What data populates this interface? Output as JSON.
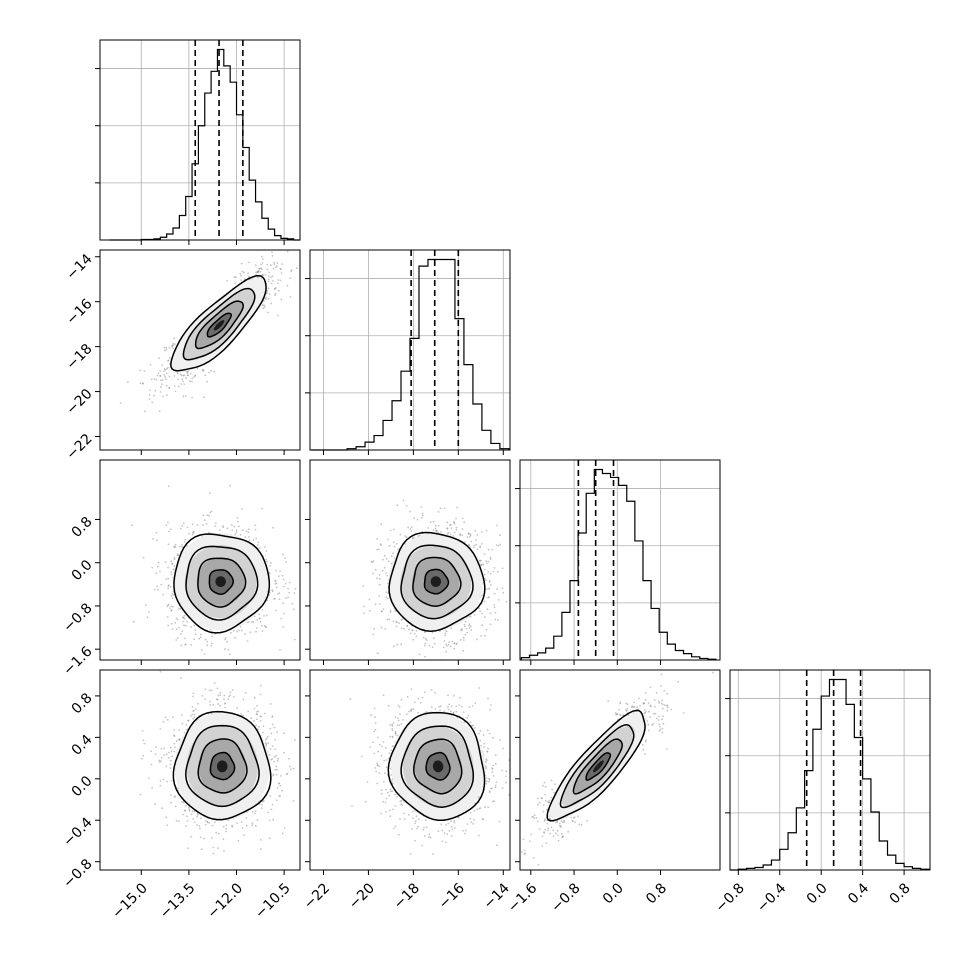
{
  "chart_data": {
    "type": "corner",
    "description_free": true,
    "params": [
      {
        "range": [
          -16.3,
          -10.0
        ],
        "ticks": [
          -15.0,
          -13.5,
          -12.0,
          -10.5
        ],
        "tick_labels": [
          "−15.0",
          "−13.5",
          "−12.0",
          "−10.5"
        ],
        "quantiles": [
          -13.3,
          -12.55,
          -11.8
        ],
        "hist_centers": [
          -15.9,
          -15.7,
          -15.5,
          -15.3,
          -15.1,
          -14.9,
          -14.7,
          -14.5,
          -14.3,
          -14.1,
          -13.9,
          -13.7,
          -13.5,
          -13.3,
          -13.1,
          -12.9,
          -12.7,
          -12.5,
          -12.3,
          -12.1,
          -11.9,
          -11.7,
          -11.5,
          -11.3,
          -11.1,
          -10.9,
          -10.7,
          -10.5,
          -10.3,
          -10.1
        ],
        "hist_values": [
          0,
          0,
          0,
          0,
          0,
          1,
          1,
          2,
          5,
          11,
          22,
          45,
          80,
          140,
          210,
          270,
          310,
          350,
          320,
          290,
          230,
          170,
          110,
          70,
          40,
          20,
          8,
          3,
          2,
          0
        ]
      },
      {
        "range": [
          -22.6,
          -13.7
        ],
        "ticks": [
          -22,
          -20,
          -18,
          -16,
          -14
        ],
        "tick_labels": [
          "−22",
          "−20",
          "−18",
          "−16",
          "−14"
        ],
        "quantiles": [
          -18.1,
          -17.05,
          -16.0
        ],
        "hist_centers": [
          -22.35,
          -21.95,
          -21.55,
          -21.15,
          -20.75,
          -20.35,
          -19.95,
          -19.55,
          -19.15,
          -18.75,
          -18.35,
          -17.95,
          -17.55,
          -17.15,
          -16.75,
          -16.35,
          -15.95,
          -15.55,
          -15.15,
          -14.75,
          -14.35,
          -13.95
        ],
        "hist_values": [
          0,
          0,
          0,
          0,
          2,
          5,
          12,
          22,
          45,
          75,
          120,
          170,
          280,
          290,
          290,
          290,
          200,
          130,
          70,
          30,
          10,
          2
        ]
      },
      {
        "range": [
          -1.8,
          1.9
        ],
        "ticks": [
          -1.6,
          -0.8,
          0.0,
          0.8
        ],
        "tick_labels": [
          "−1.6",
          "−0.8",
          "0.0",
          "0.8"
        ],
        "quantiles": [
          -0.72,
          -0.4,
          -0.07
        ],
        "hist_centers": [
          -1.7,
          -1.55,
          -1.4,
          -1.25,
          -1.1,
          -0.95,
          -0.8,
          -0.65,
          -0.5,
          -0.35,
          -0.2,
          -0.05,
          0.1,
          0.25,
          0.4,
          0.55,
          0.7,
          0.85,
          1.0,
          1.15,
          1.3,
          1.45,
          1.6,
          1.75
        ],
        "hist_values": [
          3,
          6,
          9,
          15,
          30,
          60,
          100,
          160,
          210,
          240,
          235,
          230,
          220,
          200,
          150,
          100,
          65,
          35,
          20,
          12,
          8,
          4,
          2,
          1
        ]
      },
      {
        "range": [
          -0.88,
          1.05
        ],
        "ticks": [
          -0.8,
          -0.4,
          0.0,
          0.4,
          0.8
        ],
        "tick_labels": [
          "−0.8",
          "−0.4",
          "0.0",
          "0.4",
          "0.8"
        ],
        "quantiles": [
          -0.14,
          0.12,
          0.38
        ],
        "hist_centers": [
          -0.84,
          -0.76,
          -0.68,
          -0.6,
          -0.52,
          -0.44,
          -0.36,
          -0.28,
          -0.2,
          -0.12,
          -0.04,
          0.04,
          0.12,
          0.2,
          0.28,
          0.36,
          0.44,
          0.52,
          0.6,
          0.68,
          0.76,
          0.84,
          0.92,
          1.0
        ],
        "hist_values": [
          0,
          1,
          2,
          3,
          6,
          12,
          25,
          45,
          75,
          120,
          170,
          210,
          230,
          230,
          200,
          160,
          110,
          70,
          35,
          18,
          8,
          4,
          2,
          1
        ]
      }
    ],
    "left_axis": {
      "row1": {
        "range": [
          -22.6,
          -13.7
        ],
        "ticks": [
          -22,
          -20,
          -18,
          -16,
          -14
        ],
        "tick_labels": [
          "−22",
          "−20",
          "−18",
          "−16",
          "−14"
        ]
      },
      "row2": {
        "range": [
          -1.8,
          1.9
        ],
        "ticks": [
          -1.6,
          -0.8,
          0.0,
          0.8
        ],
        "tick_labels": [
          "−1.6",
          "−0.8",
          "0.0",
          "0.8"
        ]
      },
      "row3": {
        "range": [
          -0.88,
          1.05
        ],
        "ticks": [
          -0.8,
          -0.4,
          0.0,
          0.4,
          0.8
        ],
        "tick_labels": [
          "−0.8",
          "−0.4",
          "0.0",
          "0.4",
          "0.8"
        ]
      }
    },
    "pairs": [
      {
        "row": 1,
        "col": 0,
        "mean_x": -12.55,
        "mean_y": -17.05,
        "sd_x": 0.75,
        "sd_y": 1.05,
        "corr": 0.82
      },
      {
        "row": 2,
        "col": 0,
        "mean_x": -12.5,
        "mean_y": -0.35,
        "sd_x": 0.75,
        "sd_y": 0.45,
        "corr": 0.0
      },
      {
        "row": 2,
        "col": 1,
        "mean_x": -17.0,
        "mean_y": -0.35,
        "sd_x": 1.05,
        "sd_y": 0.45,
        "corr": 0.0
      },
      {
        "row": 3,
        "col": 0,
        "mean_x": -12.45,
        "mean_y": 0.12,
        "sd_x": 0.75,
        "sd_y": 0.26,
        "corr": 0.0
      },
      {
        "row": 3,
        "col": 1,
        "mean_x": -16.9,
        "mean_y": 0.12,
        "sd_x": 1.05,
        "sd_y": 0.26,
        "corr": -0.05
      },
      {
        "row": 3,
        "col": 2,
        "mean_x": -0.35,
        "mean_y": 0.12,
        "sd_x": 0.45,
        "sd_y": 0.26,
        "corr": 0.85
      }
    ],
    "contour_levels_sigma": [
      0.5,
      1.0,
      1.5,
      2.0
    ],
    "grid": true,
    "legend": "none",
    "colors": {
      "line": "#000000",
      "grid": "#b0b0b0",
      "points": "#7f7f7f",
      "frame": "#000000"
    }
  }
}
